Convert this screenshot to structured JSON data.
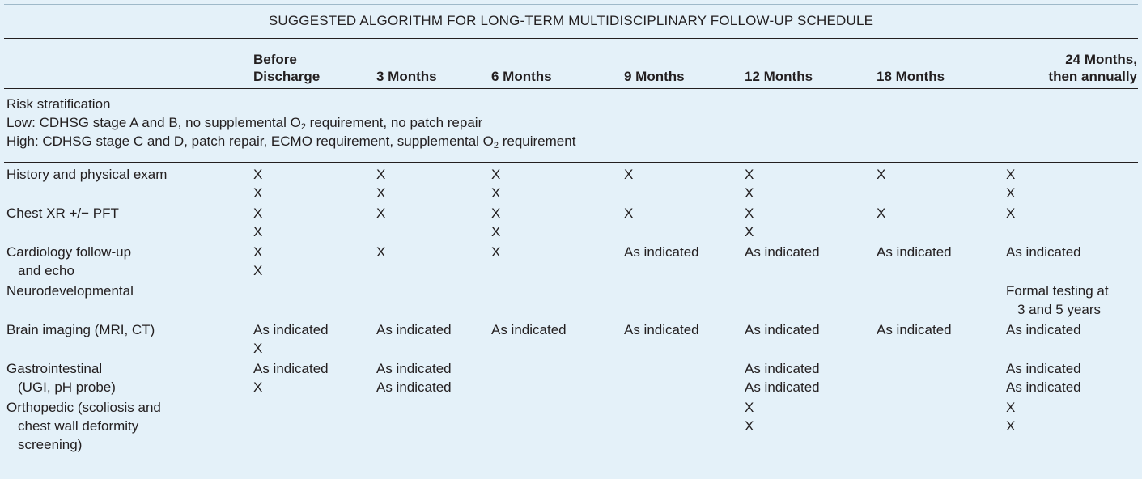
{
  "title": "SUGGESTED ALGORITHM FOR LONG-TERM MULTIDISCIPLINARY FOLLOW-UP SCHEDULE",
  "columns": [
    "Before\nDischarge",
    "3 Months",
    "6 Months",
    "9 Months",
    "12 Months",
    "18 Months",
    "24 Months,\nthen annually"
  ],
  "risk": {
    "heading": "Risk stratification",
    "low_prefix": "Low: CDHSG stage A and B, no supplemental O",
    "low_sub": "2",
    "low_suffix": " requirement, no patch repair",
    "high_prefix": "High: CDHSG stage C and D, patch repair, ECMO requirement, supplemental O",
    "high_sub": "2",
    "high_suffix": " requirement"
  },
  "rows": [
    {
      "label_lines": [
        "History and physical exam"
      ],
      "lines": [
        [
          "X",
          "X",
          "X",
          "X",
          "X",
          "X",
          "X"
        ],
        [
          "X",
          "X",
          "X",
          "",
          "X",
          "",
          "X"
        ]
      ]
    },
    {
      "label_lines": [
        "Chest XR +/− PFT"
      ],
      "lines": [
        [
          "X",
          "X",
          "X",
          "X",
          "X",
          "X",
          "X"
        ],
        [
          "X",
          "",
          "X",
          "",
          "X",
          "",
          ""
        ]
      ]
    },
    {
      "label_lines": [
        "Cardiology follow-up",
        "and echo"
      ],
      "lines": [
        [
          "X",
          "X",
          "X",
          "As indicated",
          "As indicated",
          "As indicated",
          "As indicated"
        ],
        [
          "X",
          "",
          "",
          "",
          "",
          "",
          ""
        ]
      ]
    },
    {
      "label_lines": [
        "Neurodevelopmental"
      ],
      "lines": [
        [
          "",
          "",
          "",
          "",
          "",
          "",
          "Formal testing at"
        ],
        [
          "",
          "",
          "",
          "",
          "",
          "",
          "3 and 5 years"
        ]
      ]
    },
    {
      "label_lines": [
        "Brain imaging (MRI, CT)"
      ],
      "lines": [
        [
          "As indicated",
          "As indicated",
          "As indicated",
          "As indicated",
          "As indicated",
          "As indicated",
          "As indicated"
        ],
        [
          "X",
          "",
          "",
          "",
          "",
          "",
          ""
        ]
      ]
    },
    {
      "label_lines": [
        "Gastrointestinal",
        "(UGI, pH probe)"
      ],
      "lines": [
        [
          "As indicated",
          "As indicated",
          "",
          "",
          "As indicated",
          "",
          "As indicated"
        ],
        [
          "X",
          "As indicated",
          "",
          "",
          "As indicated",
          "",
          "As indicated"
        ]
      ]
    },
    {
      "label_lines": [
        "Orthopedic (scoliosis and",
        "chest wall deformity",
        "screening)"
      ],
      "lines": [
        [
          "",
          "",
          "",
          "",
          "X",
          "",
          "X"
        ],
        [
          "",
          "",
          "",
          "",
          "X",
          "",
          "X"
        ]
      ]
    }
  ]
}
